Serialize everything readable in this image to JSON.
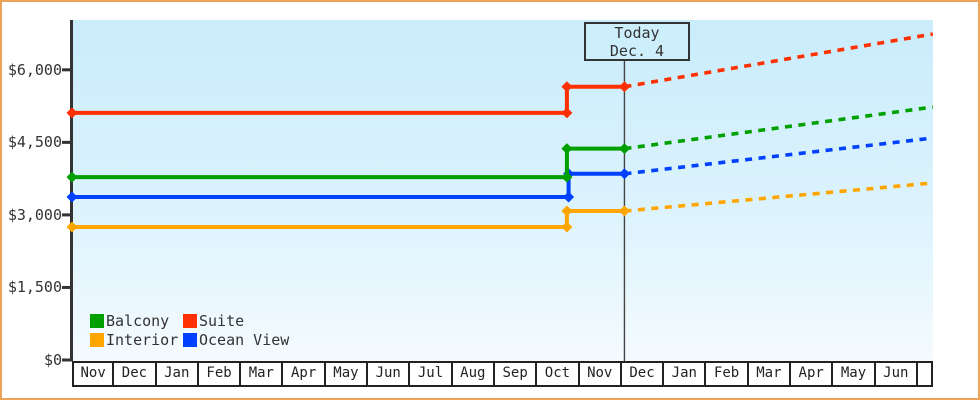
{
  "frame": {
    "border_color": "#E9A459"
  },
  "chart_data": {
    "type": "line",
    "style": "step lines; solid = price history with diamond markers, dotted = forecast after today",
    "title": "",
    "grid": false,
    "plot_background": "vertical gradient light blue #c9ecfb to near-white #f4fbff",
    "y_axis": {
      "ylim": [
        0,
        7030
      ],
      "ticks": [
        {
          "value": 0,
          "label": "$0"
        },
        {
          "value": 1500,
          "label": "$1,500"
        },
        {
          "value": 3000,
          "label": "$3,000"
        },
        {
          "value": 4500,
          "label": "$4,500"
        },
        {
          "value": 6000,
          "label": "$6,000"
        }
      ]
    },
    "x_axis": {
      "unit": "month cells, offset 0 = start of first Nov",
      "months": [
        "Nov",
        "Dec",
        "Jan",
        "Feb",
        "Mar",
        "Apr",
        "May",
        "Jun",
        "Jul",
        "Aug",
        "Sep",
        "Oct",
        "Nov",
        "Dec",
        "Jan",
        "Feb",
        "Mar",
        "Apr",
        "May",
        "Jun"
      ],
      "xlim_month_offset": [
        0,
        20.35
      ]
    },
    "today": {
      "line1": "Today",
      "line2": "Dec. 4",
      "month_offset": 13.06
    },
    "series": [
      {
        "name": "Interior",
        "color": "#FFA500",
        "history": [
          {
            "m": 0,
            "v": 2750
          },
          {
            "m": 11.7,
            "v": 2750
          },
          {
            "m": 11.7,
            "v": 3080
          },
          {
            "m": 13.06,
            "v": 3080
          }
        ],
        "forecast": [
          {
            "m": 13.06,
            "v": 3080
          },
          {
            "m": 20.35,
            "v": 3660
          }
        ]
      },
      {
        "name": "Ocean View",
        "color": "#0040FF",
        "history": [
          {
            "m": 0,
            "v": 3370
          },
          {
            "m": 11.74,
            "v": 3370
          },
          {
            "m": 11.74,
            "v": 3850
          },
          {
            "m": 13.06,
            "v": 3850
          }
        ],
        "forecast": [
          {
            "m": 13.06,
            "v": 3850
          },
          {
            "m": 20.35,
            "v": 4590
          }
        ]
      },
      {
        "name": "Balcony",
        "color": "#00A000",
        "history": [
          {
            "m": 0,
            "v": 3780
          },
          {
            "m": 11.7,
            "v": 3780
          },
          {
            "m": 11.7,
            "v": 4370
          },
          {
            "m": 13.06,
            "v": 4370
          }
        ],
        "forecast": [
          {
            "m": 13.06,
            "v": 4370
          },
          {
            "m": 20.35,
            "v": 5230
          }
        ]
      },
      {
        "name": "Suite",
        "color": "#FF3000",
        "history": [
          {
            "m": 0,
            "v": 5110
          },
          {
            "m": 11.7,
            "v": 5110
          },
          {
            "m": 11.7,
            "v": 5650
          },
          {
            "m": 13.06,
            "v": 5650
          }
        ],
        "forecast": [
          {
            "m": 13.06,
            "v": 5650
          },
          {
            "m": 20.35,
            "v": 6740
          }
        ]
      }
    ],
    "legend": {
      "rows": [
        [
          "Balcony",
          "Suite"
        ],
        [
          "Interior",
          "Ocean View"
        ]
      ]
    }
  }
}
